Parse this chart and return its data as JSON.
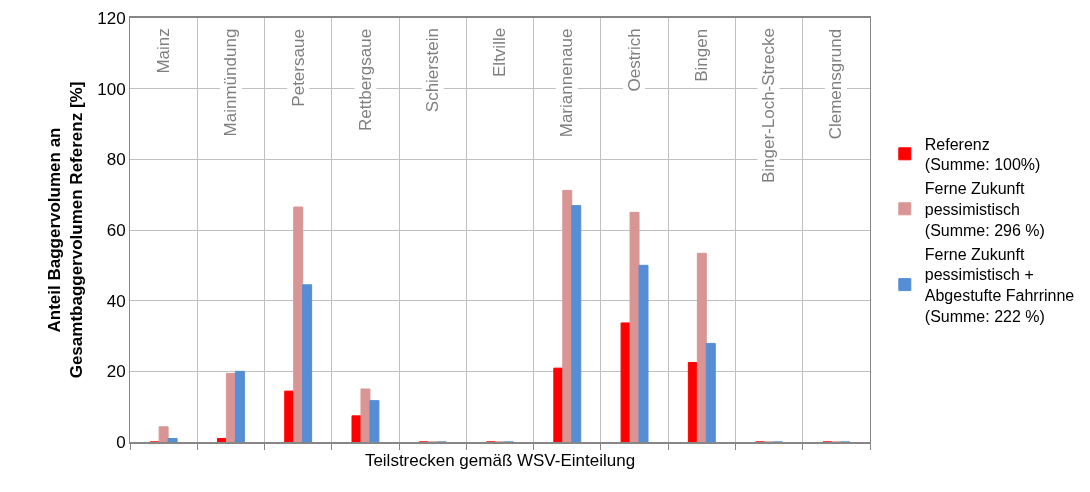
{
  "chart_data": {
    "type": "bar",
    "ylabel": "Anteil Baggervolumen an\nGesamtbaggervolumen Referenz [%]",
    "xlabel": "Teilstrecken gemäß WSV-Einteilung",
    "categories": [
      "Mainz",
      "Mainmündung",
      "Petersaue",
      "Rettbergsaue",
      "Schierstein",
      "Eltville",
      "Mariannenaue",
      "Oestrich",
      "Bingen",
      "Binger-Loch-Strecke",
      "Clemensgrund"
    ],
    "series": [
      {
        "name": "Referenz\n(Summe: 100%)",
        "color": "#ff0000",
        "values": [
          0,
          1,
          14.4,
          7.4,
          0,
          0,
          20.9,
          33.7,
          22.5,
          0,
          0
        ]
      },
      {
        "name": "Ferne Zukunft\npessimistisch\n(Summe: 296 %)",
        "color": "#d99594",
        "values": [
          4.3,
          19.4,
          66.5,
          15,
          0,
          0,
          71.2,
          65,
          53.4,
          0,
          0
        ]
      },
      {
        "name": "Ferne Zukunft\npessimistisch +\nAbgestufte Fahrrinne\n(Summe: 222 %)",
        "color": "#558ed5",
        "values": [
          1,
          20,
          44.5,
          11.7,
          0,
          0,
          66.9,
          50,
          27.9,
          0,
          0
        ]
      }
    ],
    "ylim": [
      0,
      120
    ],
    "yticks": [
      0,
      20,
      40,
      60,
      80,
      100,
      120
    ],
    "grid": true,
    "legend": "right"
  }
}
